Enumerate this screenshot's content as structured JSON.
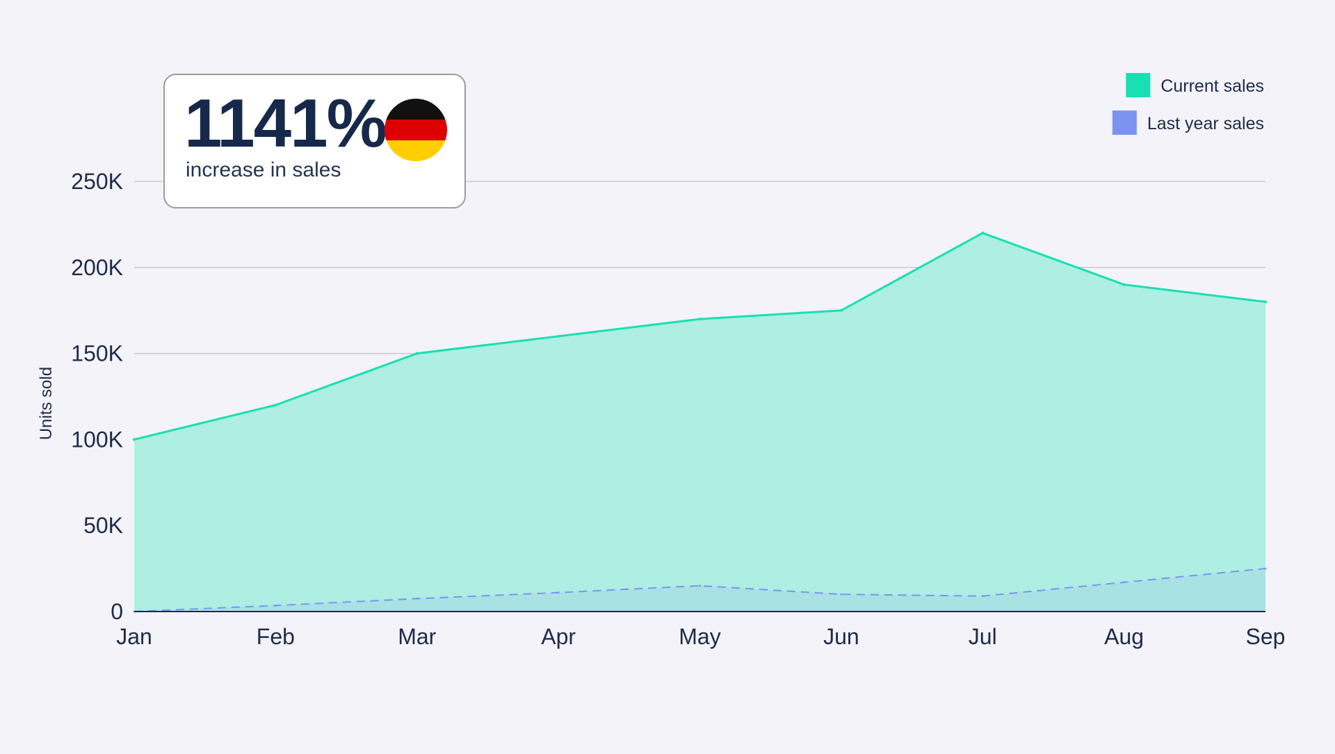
{
  "colors": {
    "current": "#18e0b3",
    "current_fill": "#aeeee3",
    "last_year": "#7c93f2",
    "last_year_fill": "#a9e2e3",
    "grid": "#c9c9d3",
    "axis": "#1d2b4a",
    "flag_black": "#111111",
    "flag_red": "#dd0000",
    "flag_gold": "#ffce00"
  },
  "callout": {
    "value": "1141%",
    "label": "increase in sales",
    "flag_icon": "germany-flag-icon"
  },
  "chart_data": {
    "type": "area",
    "categories": [
      "Jan",
      "Feb",
      "Mar",
      "Apr",
      "May",
      "Jun",
      "Jul",
      "Aug",
      "Sep"
    ],
    "series": [
      {
        "name": "Current sales",
        "values": [
          100000,
          120000,
          150000,
          160000,
          170000,
          175000,
          220000,
          190000,
          180000
        ],
        "style": "solid"
      },
      {
        "name": "Last year sales",
        "values": [
          0,
          3500,
          7500,
          11000,
          15000,
          10000,
          9000,
          17000,
          25000
        ],
        "style": "dashed"
      }
    ],
    "ylabel": "Units sold",
    "xlabel": "",
    "ylim": [
      0,
      250000
    ],
    "yticks": [
      0,
      50000,
      100000,
      150000,
      200000,
      250000
    ],
    "ytick_labels": [
      "0",
      "50K",
      "100K",
      "150K",
      "200K",
      "250K"
    ],
    "grid": true,
    "legend_position": "top-right"
  }
}
